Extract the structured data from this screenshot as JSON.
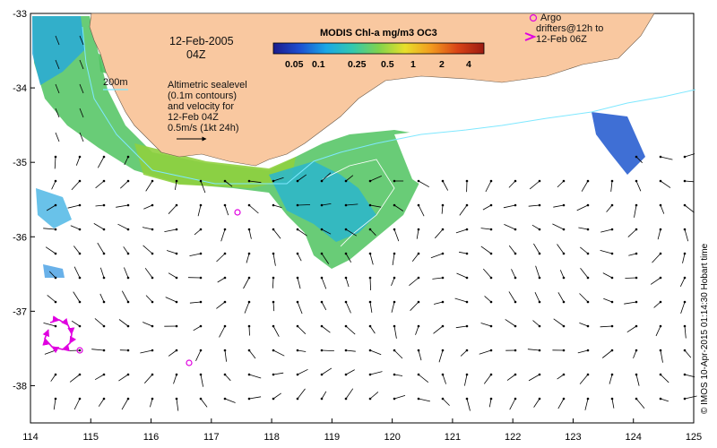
{
  "map": {
    "date": "12-Feb-2005",
    "time": "04Z",
    "colorbar_title": "MODIS Chl-a mg/m3 OC3",
    "colorbar_ticks": [
      "0.05",
      "0.1",
      "0.25",
      "0.5",
      "1",
      "2",
      "4"
    ],
    "colorbar_colors": [
      "#1b1b8c",
      "#1d4fd1",
      "#1aa7e6",
      "#32c8b0",
      "#7fd34d",
      "#e8df2a",
      "#f29a1f",
      "#d94417",
      "#9c1b12"
    ],
    "depth_label": "200m",
    "altimetry_note": [
      "Altimetric sealevel",
      "(0.1m contours)",
      "and velocity for",
      "12-Feb 04Z",
      "0.5m/s (1kt 24h)"
    ],
    "argo_legend": [
      "Argo",
      "drifters@12h to",
      "12-Feb 06Z"
    ],
    "credit": "© IMOS 10-Apr-2015 01:14:30 Hobart time",
    "land_color": "#f9c8a0",
    "chl_color": "#3fbf6a",
    "drifter_color": "#e000e0",
    "contour_color": "#7fe8ff",
    "x_axis": {
      "ticks": [
        "114",
        "115",
        "116",
        "117",
        "118",
        "119",
        "120",
        "121",
        "122",
        "123",
        "124",
        "125"
      ],
      "range": [
        114,
        125
      ]
    },
    "y_axis": {
      "ticks": [
        "-33",
        "-34",
        "-35",
        "-36",
        "-37",
        "-38"
      ],
      "range": [
        -38.5,
        -33
      ]
    }
  }
}
